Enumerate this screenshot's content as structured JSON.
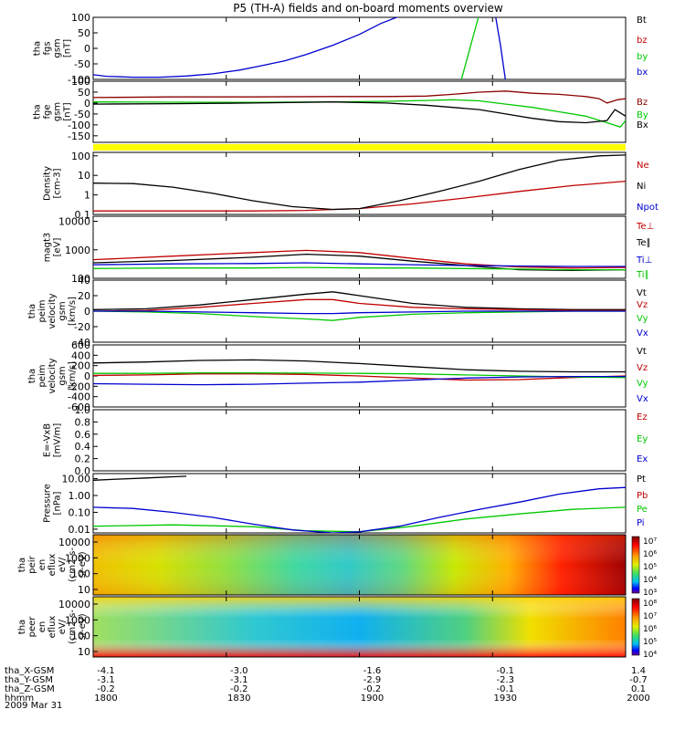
{
  "title": "P5 (TH-A) fields and on-board moments overview",
  "date_label": "2009 Mar 31",
  "time_axis": {
    "ticks": [
      "1800",
      "1830",
      "1900",
      "1930",
      "2000"
    ],
    "rows": [
      {
        "name": "tha_X-GSM",
        "values": [
          "-4.1",
          "-3.0",
          "-1.6",
          "-0.1",
          "1.4"
        ]
      },
      {
        "name": "tha_Y-GSM",
        "values": [
          "-3.1",
          "-3.1",
          "-2.9",
          "-2.3",
          "-0.7"
        ]
      },
      {
        "name": "tha_Z-GSM",
        "values": [
          "-0.2",
          "-0.2",
          "-0.2",
          "-0.1",
          "0.1"
        ]
      },
      {
        "name": "hhmm",
        "values": []
      }
    ]
  },
  "colors": {
    "black": "#000000",
    "red": "#c00000",
    "dark_red": "#8b0000",
    "green": "#00c800",
    "blue": "#0000d0",
    "yellow": "#ffff00"
  },
  "chart_data": [
    {
      "type": "line",
      "ylabel": [
        "tha",
        "fgs",
        "gsm",
        "[nT]"
      ],
      "yticks": [
        "100",
        "50",
        "0",
        "-50",
        "-100"
      ],
      "ylim": [
        -100,
        100
      ],
      "series": [
        {
          "name": "Bt",
          "color": "black",
          "x": [],
          "y": []
        },
        {
          "name": "bz",
          "color": "red",
          "x": [],
          "y": []
        },
        {
          "name": "by",
          "color": "green",
          "x": [
            1938,
            1945
          ],
          "y": [
            -110,
            110
          ]
        },
        {
          "name": "bx",
          "color": "blue",
          "x": [
            1800,
            1805,
            1815,
            1825,
            1835,
            1845,
            1855,
            1862,
            1872,
            1880,
            1890,
            1900,
            1908,
            1914,
            1920,
            1951,
            1953,
            1955
          ],
          "y": [
            -85,
            -90,
            -93,
            -93,
            -89,
            -82,
            -70,
            -58,
            -40,
            -20,
            10,
            45,
            80,
            100,
            110,
            110,
            10,
            -110
          ]
        }
      ]
    },
    {
      "type": "line",
      "ylabel": [
        "tha",
        "fge",
        "gsm",
        "[nT]"
      ],
      "yticks": [
        "100",
        "50",
        "0",
        "-50",
        "-100",
        "-150"
      ],
      "ylim": [
        -180,
        100
      ],
      "series": [
        {
          "name": "Bz",
          "color": "dark_red",
          "x": [
            1800,
            1830,
            1860,
            1890,
            1910,
            1925,
            1935,
            1945,
            1955,
            1965,
            1975,
            1985,
            1990,
            1993,
            1997,
            2000
          ],
          "y": [
            25,
            28,
            28,
            30,
            30,
            32,
            40,
            50,
            55,
            45,
            40,
            30,
            20,
            0,
            15,
            20
          ]
        },
        {
          "name": "By",
          "color": "green",
          "x": [
            1800,
            1830,
            1860,
            1890,
            1910,
            1925,
            1935,
            1945,
            1955,
            1965,
            1975,
            1985,
            1993,
            1998,
            2000
          ],
          "y": [
            5,
            4,
            3,
            5,
            8,
            12,
            15,
            10,
            -5,
            -20,
            -40,
            -60,
            -90,
            -110,
            -80
          ]
        },
        {
          "name": "Bx",
          "color": "black",
          "x": [
            1800,
            1830,
            1860,
            1890,
            1910,
            1925,
            1935,
            1945,
            1955,
            1965,
            1975,
            1985,
            1993,
            1996,
            2000
          ],
          "y": [
            -5,
            -3,
            0,
            5,
            0,
            -10,
            -20,
            -30,
            -50,
            -70,
            -85,
            -90,
            -80,
            -30,
            -60
          ]
        }
      ]
    },
    {
      "type": "line",
      "ylabel": [
        "Density",
        "[cm-3]"
      ],
      "yticks": [
        "100",
        "10",
        "1",
        "0.1"
      ],
      "yscale": "log",
      "ylim": [
        0.1,
        150
      ],
      "series": [
        {
          "name": "Ne",
          "color": "red",
          "x": [
            1800,
            1830,
            1860,
            1880,
            1900,
            1920,
            1940,
            1960,
            1980,
            2000
          ],
          "y": [
            0.15,
            0.15,
            0.15,
            0.16,
            0.2,
            0.35,
            0.7,
            1.5,
            3,
            5
          ]
        },
        {
          "name": "Ni",
          "color": "black",
          "x": [
            1800,
            1815,
            1830,
            1845,
            1860,
            1875,
            1890,
            1900,
            1915,
            1930,
            1945,
            1960,
            1975,
            1990,
            2000
          ],
          "y": [
            4,
            3.8,
            2.5,
            1.2,
            0.5,
            0.25,
            0.18,
            0.2,
            0.5,
            1.5,
            5,
            20,
            60,
            100,
            110
          ]
        },
        {
          "name": "Npot",
          "color": "blue",
          "x": [],
          "y": []
        }
      ]
    },
    {
      "type": "line",
      "ylabel": [
        "magt3",
        "[eV]"
      ],
      "yticks": [
        "10000",
        "1000",
        "100"
      ],
      "yscale": "log",
      "ylim": [
        100,
        15000
      ],
      "series": [
        {
          "name": "Te⊥",
          "color": "red",
          "x": [
            1800,
            1830,
            1860,
            1880,
            1900,
            1920,
            1940,
            1960,
            1980,
            2000
          ],
          "y": [
            450,
            600,
            800,
            950,
            800,
            500,
            320,
            250,
            230,
            240
          ]
        },
        {
          "name": "Te∥",
          "color": "black",
          "x": [
            1800,
            1830,
            1860,
            1880,
            1900,
            1920,
            1940,
            1960,
            1980,
            2000
          ],
          "y": [
            350,
            420,
            550,
            700,
            600,
            400,
            280,
            200,
            190,
            200
          ]
        },
        {
          "name": "Ti⊥",
          "color": "blue",
          "x": [
            1800,
            1830,
            1860,
            1880,
            1900,
            1920,
            1940,
            1960,
            1980,
            2000
          ],
          "y": [
            300,
            320,
            330,
            350,
            320,
            300,
            280,
            270,
            260,
            260
          ]
        },
        {
          "name": "Ti∥",
          "color": "green",
          "x": [
            1800,
            1830,
            1860,
            1880,
            1900,
            1920,
            1940,
            1960,
            1980,
            2000
          ],
          "y": [
            220,
            230,
            230,
            240,
            230,
            230,
            220,
            210,
            200,
            200
          ]
        }
      ]
    },
    {
      "type": "line",
      "ylabel": [
        "tha",
        "peim",
        "velocity",
        "gsm",
        "[km/s]"
      ],
      "yticks": [
        "40",
        "20",
        "0",
        "-20",
        "-40"
      ],
      "ylim": [
        -40,
        40
      ],
      "series": [
        {
          "name": "Vt",
          "color": "black",
          "x": [
            1800,
            1820,
            1840,
            1860,
            1880,
            1890,
            1900,
            1920,
            1940,
            1960,
            1980,
            2000
          ],
          "y": [
            2,
            3,
            8,
            15,
            22,
            25,
            20,
            10,
            5,
            3,
            2,
            2
          ]
        },
        {
          "name": "Vz",
          "color": "red",
          "x": [
            1800,
            1820,
            1840,
            1860,
            1880,
            1890,
            1900,
            1920,
            1940,
            1960,
            1980,
            2000
          ],
          "y": [
            0,
            1,
            5,
            10,
            15,
            15,
            10,
            5,
            3,
            2,
            1,
            1
          ]
        },
        {
          "name": "Vy",
          "color": "green",
          "x": [
            1800,
            1820,
            1840,
            1860,
            1880,
            1890,
            1900,
            1920,
            1940,
            1960,
            1980,
            2000
          ],
          "y": [
            0,
            -1,
            -3,
            -7,
            -10,
            -12,
            -8,
            -4,
            -2,
            -1,
            0,
            0
          ]
        },
        {
          "name": "Vx",
          "color": "blue",
          "x": [
            1800,
            1820,
            1840,
            1860,
            1880,
            1890,
            1900,
            1920,
            1940,
            1960,
            1980,
            2000
          ],
          "y": [
            0,
            0,
            -1,
            -2,
            -3,
            -3,
            -2,
            -1,
            0,
            0,
            0,
            0
          ]
        }
      ]
    },
    {
      "type": "line",
      "ylabel": [
        "tha",
        "peim",
        "velocity",
        "gsm",
        "[km/s]"
      ],
      "yticks": [
        "600",
        "400",
        "200",
        "0",
        "-200",
        "-400",
        "-600"
      ],
      "ylim": [
        -600,
        600
      ],
      "series": [
        {
          "name": "Vt",
          "color": "black",
          "x": [
            1800,
            1820,
            1840,
            1860,
            1880,
            1900,
            1920,
            1940,
            1960,
            1980,
            2000
          ],
          "y": [
            250,
            270,
            300,
            310,
            290,
            240,
            180,
            120,
            90,
            80,
            80
          ]
        },
        {
          "name": "Vz",
          "color": "red",
          "x": [
            1800,
            1820,
            1840,
            1860,
            1880,
            1900,
            1920,
            1940,
            1960,
            1980,
            2000
          ],
          "y": [
            10,
            20,
            40,
            40,
            30,
            0,
            -40,
            -80,
            -70,
            -30,
            0
          ]
        },
        {
          "name": "Vy",
          "color": "green",
          "x": [
            1800,
            1820,
            1840,
            1860,
            1880,
            1900,
            1920,
            1940,
            1960,
            1980,
            2000
          ],
          "y": [
            50,
            50,
            60,
            60,
            55,
            50,
            40,
            20,
            0,
            -20,
            -30
          ]
        },
        {
          "name": "Vx",
          "color": "blue",
          "x": [
            1800,
            1820,
            1840,
            1860,
            1880,
            1900,
            1920,
            1940,
            1960,
            1980,
            2000
          ],
          "y": [
            -150,
            -160,
            -170,
            -160,
            -140,
            -120,
            -80,
            -40,
            -20,
            -10,
            -10
          ]
        }
      ]
    },
    {
      "type": "line",
      "ylabel": [
        "E=-VxB",
        "[mV/m]"
      ],
      "yticks": [
        "1.0",
        "0.8",
        "0.6",
        "0.4",
        "0.2",
        "0.0"
      ],
      "ylim": [
        0,
        1
      ],
      "series": [
        {
          "name": "Ez",
          "color": "red",
          "x": [],
          "y": []
        },
        {
          "name": "Ey",
          "color": "green",
          "x": [],
          "y": []
        },
        {
          "name": "Ex",
          "color": "blue",
          "x": [],
          "y": []
        }
      ]
    },
    {
      "type": "line",
      "ylabel": [
        "Pressure",
        "[nPa]"
      ],
      "yticks": [
        "10.00",
        "1.00",
        "0.10",
        "0.01"
      ],
      "yscale": "log",
      "ylim": [
        0.006,
        20
      ],
      "series": [
        {
          "name": "Pt",
          "color": "black",
          "x": [
            1800,
            1810,
            1820,
            1830,
            1835
          ],
          "y": [
            8,
            9.5,
            11,
            13,
            14
          ]
        },
        {
          "name": "Pb",
          "color": "red",
          "x": [],
          "y": []
        },
        {
          "name": "Pe",
          "color": "green",
          "x": [
            1800,
            1830,
            1860,
            1880,
            1900,
            1920,
            1940,
            1960,
            1980,
            2000
          ],
          "y": [
            0.015,
            0.018,
            0.014,
            0.008,
            0.007,
            0.015,
            0.04,
            0.08,
            0.15,
            0.2
          ]
        },
        {
          "name": "Pi",
          "color": "blue",
          "x": [
            1800,
            1815,
            1830,
            1845,
            1860,
            1875,
            1890,
            1900,
            1915,
            1930,
            1945,
            1960,
            1975,
            1990,
            2000
          ],
          "y": [
            0.2,
            0.17,
            0.1,
            0.05,
            0.02,
            0.009,
            0.006,
            0.007,
            0.015,
            0.05,
            0.15,
            0.4,
            1.2,
            2.5,
            3
          ]
        }
      ]
    },
    {
      "type": "heatmap",
      "ylabel": [
        "tha",
        "peir",
        "en",
        "eflux",
        "eV/",
        "(cm2-s-",
        "sr-eV)"
      ],
      "yticks": [
        "10000",
        "1000",
        "100",
        "10"
      ],
      "yscale": "log",
      "colorbar_ticks": [
        "10⁷",
        "10⁶",
        "10⁵",
        "10⁴",
        "10³"
      ],
      "colorbar_range": [
        1000,
        10000000
      ]
    },
    {
      "type": "heatmap",
      "ylabel": [
        "tha",
        "peer",
        "en",
        "eflux",
        "eV/",
        "(cm2-s-",
        "sr-eV)"
      ],
      "yticks": [
        "10000",
        "1000",
        "100",
        "10"
      ],
      "yscale": "log",
      "colorbar_ticks": [
        "10⁸",
        "10⁷",
        "10⁶",
        "10⁵",
        "10⁴"
      ],
      "colorbar_range": [
        10000,
        100000000
      ]
    }
  ]
}
